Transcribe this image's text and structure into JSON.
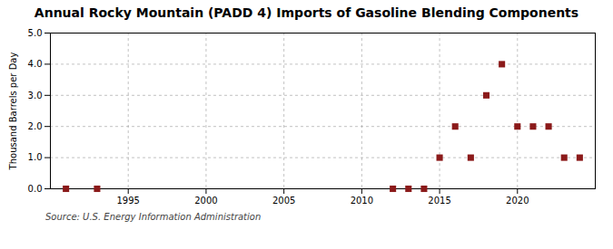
{
  "chart_data": {
    "type": "scatter",
    "title": "Annual Rocky Mountain (PADD 4) Imports of Gasoline Blending Components",
    "ylabel": "Thousand Barrels per Day",
    "source": "Source: U.S. Energy Information Administration",
    "x": [
      1991,
      1993,
      2012,
      2013,
      2014,
      2015,
      2016,
      2017,
      2018,
      2019,
      2020,
      2021,
      2022,
      2023,
      2024
    ],
    "values": [
      0.0,
      0.0,
      0.0,
      0.0,
      0.0,
      1.0,
      2.0,
      1.0,
      3.0,
      4.0,
      2.0,
      2.0,
      2.0,
      1.0,
      1.0
    ],
    "color": "#8b1a1a",
    "marker": "square",
    "xlim": [
      1990,
      2025
    ],
    "xticks": [
      1995,
      2000,
      2005,
      2010,
      2015,
      2020
    ],
    "ylim": [
      0,
      5.0
    ],
    "yticks": [
      {
        "value": 0.0,
        "label": "0.0"
      },
      {
        "value": 1.0,
        "label": "1.0"
      },
      {
        "value": 2.0,
        "label": "2.0"
      },
      {
        "value": 3.0,
        "label": "3.0"
      },
      {
        "value": 4.0,
        "label": "4.0"
      },
      {
        "value": 5.0,
        "label": "5.0"
      }
    ],
    "grid": true
  }
}
